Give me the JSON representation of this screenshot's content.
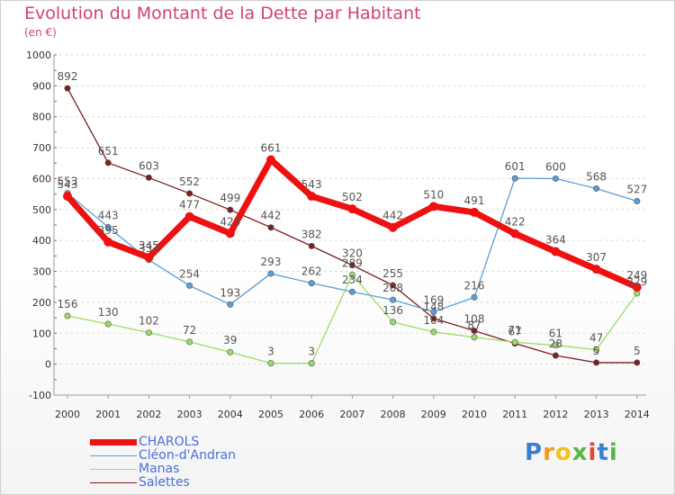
{
  "chart_data": {
    "type": "line",
    "title": "Evolution du Montant de la Dette par Habitant",
    "subtitle": "(en €)",
    "xlabel": "",
    "ylabel": "",
    "categories": [
      "2000",
      "2001",
      "2002",
      "2003",
      "2004",
      "2005",
      "2006",
      "2007",
      "2008",
      "2009",
      "2010",
      "2011",
      "2012",
      "2013",
      "2014"
    ],
    "ylim": [
      -100,
      1000
    ],
    "yticks": [
      -100,
      0,
      100,
      200,
      300,
      400,
      500,
      600,
      700,
      800,
      900,
      1000
    ],
    "ytick_labels": [
      "-100",
      "0",
      "100",
      "200",
      "300",
      "400",
      "500",
      "600",
      "700",
      "800",
      "900",
      "1000"
    ],
    "grid": "horizontal dashed",
    "legend_position": "bottom-left",
    "series": [
      {
        "name": "CHAROLS",
        "color": "#ee1111",
        "width": "thick",
        "values": [
          543,
          395,
          345,
          477,
          423,
          661,
          543,
          502,
          442,
          510,
          491,
          422,
          364,
          307,
          249
        ],
        "labels": [
          "543",
          "395",
          "345",
          "477",
          "423",
          "661",
          "543",
          "502",
          "442",
          "510",
          "491",
          "422",
          "364",
          "307",
          "249"
        ]
      },
      {
        "name": "Cléon-d'Andran",
        "color": "#5c9ed8",
        "width": "thin",
        "values": [
          553,
          443,
          337,
          254,
          193,
          293,
          262,
          234,
          208,
          169,
          216,
          601,
          600,
          568,
          527
        ],
        "labels": [
          "553",
          "443",
          "337",
          "254",
          "193",
          "293",
          "262",
          "234",
          "208",
          "169",
          "216",
          "601",
          "600",
          "568",
          "527"
        ]
      },
      {
        "name": "Manas",
        "color": "#99dd66",
        "width": "thin",
        "values": [
          156,
          130,
          102,
          72,
          39,
          3,
          3,
          289,
          136,
          104,
          87,
          71,
          61,
          47,
          229
        ],
        "labels": [
          "156",
          "130",
          "102",
          "72",
          "39",
          "3",
          "3",
          "289",
          "136",
          "104",
          "87",
          "71",
          "61",
          "47",
          "229"
        ]
      },
      {
        "name": "Salettes",
        "color": "#7a1f1f",
        "width": "thin",
        "values": [
          892,
          651,
          603,
          552,
          499,
          442,
          382,
          320,
          255,
          148,
          108,
          67,
          28,
          5,
          5
        ],
        "labels": [
          "892",
          "651",
          "603",
          "552",
          "499",
          "442",
          "382",
          "320",
          "255",
          "148",
          "108",
          "67",
          "28",
          "5",
          "5"
        ]
      }
    ]
  },
  "logo": {
    "letters": [
      "P",
      "r",
      "o",
      "x",
      "i",
      "t",
      "i"
    ],
    "colors": [
      "#3a7fd4",
      "#f29a1c",
      "#f2c21c",
      "#57b845",
      "#e8432e",
      "#3a7fd4",
      "#57b845"
    ]
  }
}
